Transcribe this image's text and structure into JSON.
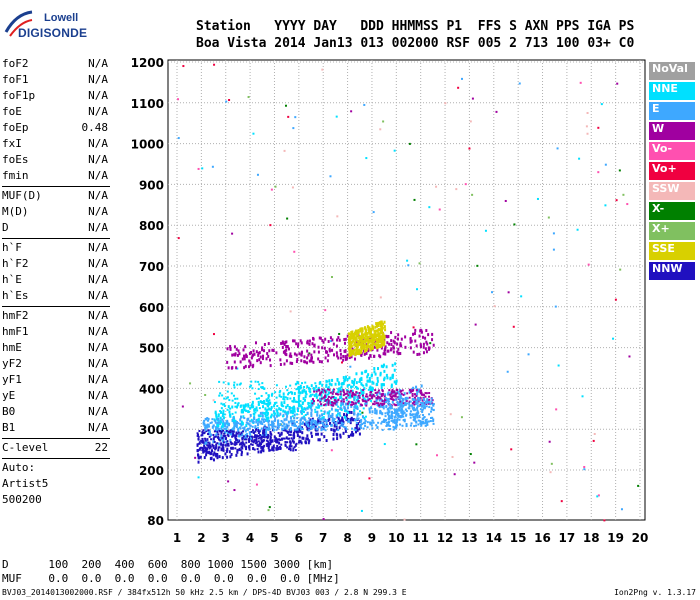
{
  "logo": {
    "line1": "Lowell",
    "line2": "DIGISONDE"
  },
  "header": {
    "row1": "Station   YYYY DAY   DDD HHMMSS P1  FFS S AXN PPS IGA PS",
    "row2": "Boa Vista 2014 Jan13 013 002000 RSF 005 2 713 100 03+ C0"
  },
  "params": {
    "group1": [
      {
        "k": "foF2",
        "v": "N/A"
      },
      {
        "k": "foF1",
        "v": "N/A"
      },
      {
        "k": "foF1p",
        "v": "N/A"
      },
      {
        "k": "foE",
        "v": "N/A"
      },
      {
        "k": "foEp",
        "v": "0.48"
      },
      {
        "k": "fxI",
        "v": "N/A"
      },
      {
        "k": "foEs",
        "v": "N/A"
      },
      {
        "k": "fmin",
        "v": "N/A"
      }
    ],
    "group2": [
      {
        "k": "MUF(D)",
        "v": "N/A"
      },
      {
        "k": "M(D)",
        "v": "N/A"
      },
      {
        "k": "D",
        "v": "N/A"
      }
    ],
    "group3": [
      {
        "k": "h`F",
        "v": "N/A"
      },
      {
        "k": "h`F2",
        "v": "N/A"
      },
      {
        "k": "h`E",
        "v": "N/A"
      },
      {
        "k": "h`Es",
        "v": "N/A"
      }
    ],
    "group4": [
      {
        "k": "hmF2",
        "v": "N/A"
      },
      {
        "k": "hmF1",
        "v": "N/A"
      },
      {
        "k": "hmE",
        "v": "N/A"
      },
      {
        "k": "yF2",
        "v": "N/A"
      },
      {
        "k": "yF1",
        "v": "N/A"
      },
      {
        "k": "yE",
        "v": "N/A"
      },
      {
        "k": "B0",
        "v": "N/A"
      },
      {
        "k": "B1",
        "v": "N/A"
      }
    ],
    "clevel": {
      "k": "C-level",
      "v": "22"
    },
    "auto": [
      "Auto:",
      "Artist5",
      "500200"
    ]
  },
  "legend": [
    {
      "label": "NoVal",
      "color": "#a0a0a0"
    },
    {
      "label": "NNE",
      "color": "#00e0ff"
    },
    {
      "label": "E",
      "color": "#3ea8ff"
    },
    {
      "label": "W",
      "color": "#a000a0"
    },
    {
      "label": "Vo-",
      "color": "#ff50b0"
    },
    {
      "label": "Vo+",
      "color": "#f00040"
    },
    {
      "label": "SSW",
      "color": "#f4b8b8"
    },
    {
      "label": "X-",
      "color": "#008000"
    },
    {
      "label": "X+",
      "color": "#80c060"
    },
    {
      "label": "SSE",
      "color": "#d8d000"
    },
    {
      "label": "NNW",
      "color": "#2010c0"
    }
  ],
  "bottom": {
    "row1": "D      100  200  400  600  800 1000 1500 3000 [km]",
    "row2": "MUF    0.0  0.0  0.0  0.0  0.0  0.0  0.0  0.0 [MHz]"
  },
  "footer": "BVJ03_2014013002000.RSF / 384fx512h 50 kHz 2.5 km / DPS-4D BVJ03 003 / 2.8 N 299.3 E",
  "version": "Ion2Png v. 1.3.17",
  "chart_data": {
    "type": "scatter",
    "xlabel": "",
    "ylabel": "",
    "xlim": [
      1,
      20
    ],
    "ylim": [
      80,
      1200
    ],
    "xticks": [
      1,
      2,
      3,
      4,
      5,
      6,
      7,
      8,
      9,
      10,
      11,
      12,
      13,
      14,
      15,
      16,
      17,
      18,
      19,
      20
    ],
    "yticks": [
      80,
      200,
      300,
      400,
      500,
      600,
      700,
      800,
      900,
      1000,
      1100,
      1200
    ],
    "grid": true,
    "legend_position": "right",
    "traces": [
      {
        "color_key": "NNW",
        "f": [
          1.8,
          8.5
        ],
        "h": [
          250,
          320
        ]
      },
      {
        "color_key": "E",
        "f": [
          2.0,
          11.0
        ],
        "h": [
          290,
          380
        ]
      },
      {
        "color_key": "NNE",
        "f": [
          2.5,
          10.0
        ],
        "h": [
          320,
          440
        ]
      },
      {
        "color_key": "W",
        "f": [
          3.0,
          11.5
        ],
        "h": [
          480,
          520
        ]
      },
      {
        "color_key": "SSE",
        "f": [
          8.0,
          9.5
        ],
        "h": [
          510,
          540
        ]
      }
    ]
  }
}
